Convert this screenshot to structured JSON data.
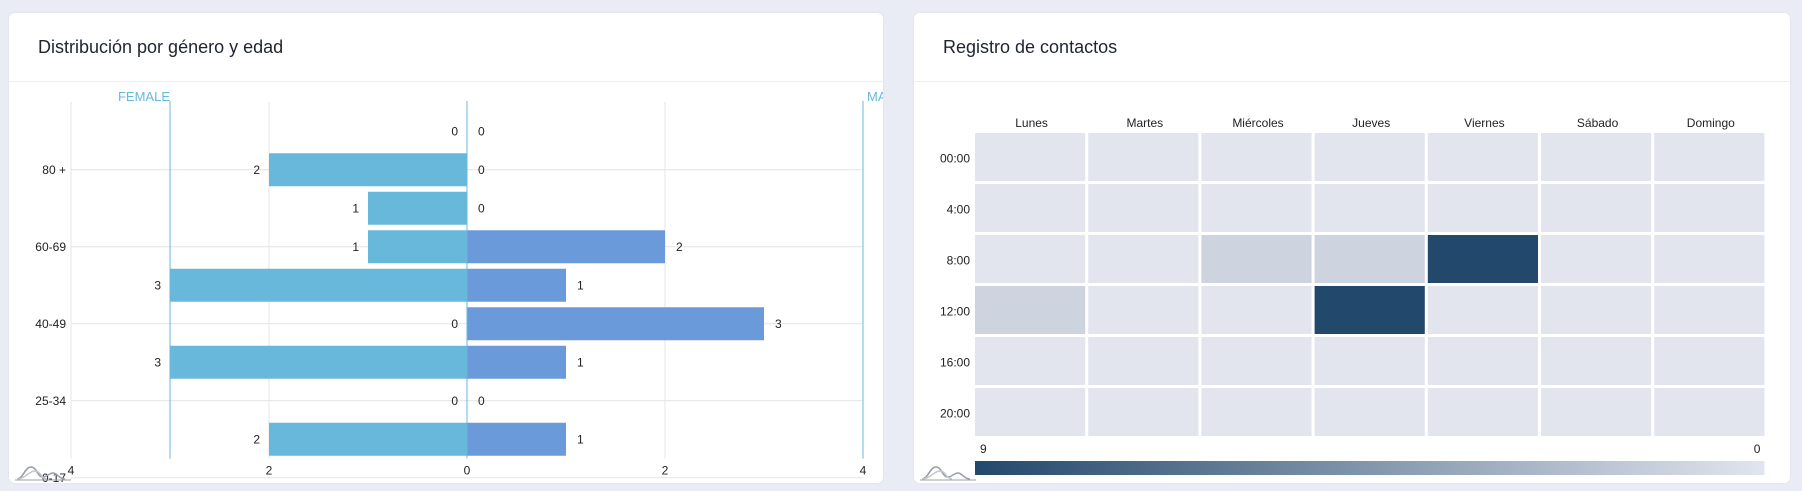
{
  "left_panel": {
    "title": "Distribución por género y edad"
  },
  "right_panel": {
    "title": "Registro de contactos"
  },
  "chart_data": [
    {
      "type": "bar",
      "orientation": "horizontal",
      "layout": "population-pyramid",
      "legend": [
        "FEMALE",
        "MALE"
      ],
      "y_tick_labels": [
        "80 +",
        "60-69",
        "40-49",
        "25-34",
        "0-17"
      ],
      "rows": [
        {
          "female": 0,
          "male": 0
        },
        {
          "female": 2,
          "male": 0
        },
        {
          "female": 1,
          "male": 0
        },
        {
          "female": 1,
          "male": 2
        },
        {
          "female": 3,
          "male": 1
        },
        {
          "female": 0,
          "male": 3
        },
        {
          "female": 3,
          "male": 1
        },
        {
          "female": 0,
          "male": 0
        },
        {
          "female": 2,
          "male": 1
        }
      ],
      "x_ticks": [
        4,
        2,
        0,
        2,
        4
      ],
      "xlim": [
        -4,
        4
      ],
      "grid": true,
      "colors": {
        "female": "#68b8dc",
        "male": "#6a9ad9",
        "axis_line": "#68b8dc"
      }
    },
    {
      "type": "heatmap",
      "x_labels": [
        "Lunes",
        "Martes",
        "Miércoles",
        "Jueves",
        "Viernes",
        "Sábado",
        "Domingo"
      ],
      "y_labels": [
        "00:00",
        "4:00",
        "8:00",
        "12:00",
        "16:00",
        "20:00"
      ],
      "values": [
        [
          0,
          0,
          0,
          0,
          0,
          0,
          0
        ],
        [
          0,
          0,
          0,
          0,
          0,
          0,
          0
        ],
        [
          0,
          0,
          1,
          1,
          9,
          0,
          0
        ],
        [
          1,
          0,
          0,
          9,
          0,
          0,
          0
        ],
        [
          0,
          0,
          0,
          0,
          0,
          0,
          0
        ],
        [
          0,
          0,
          0,
          0,
          0,
          0,
          0
        ]
      ],
      "scale_max_label": "9",
      "scale_min_label": "0",
      "range": [
        0,
        9
      ],
      "colors": {
        "low": "#e2e5ee",
        "high": "#22486b"
      }
    }
  ]
}
